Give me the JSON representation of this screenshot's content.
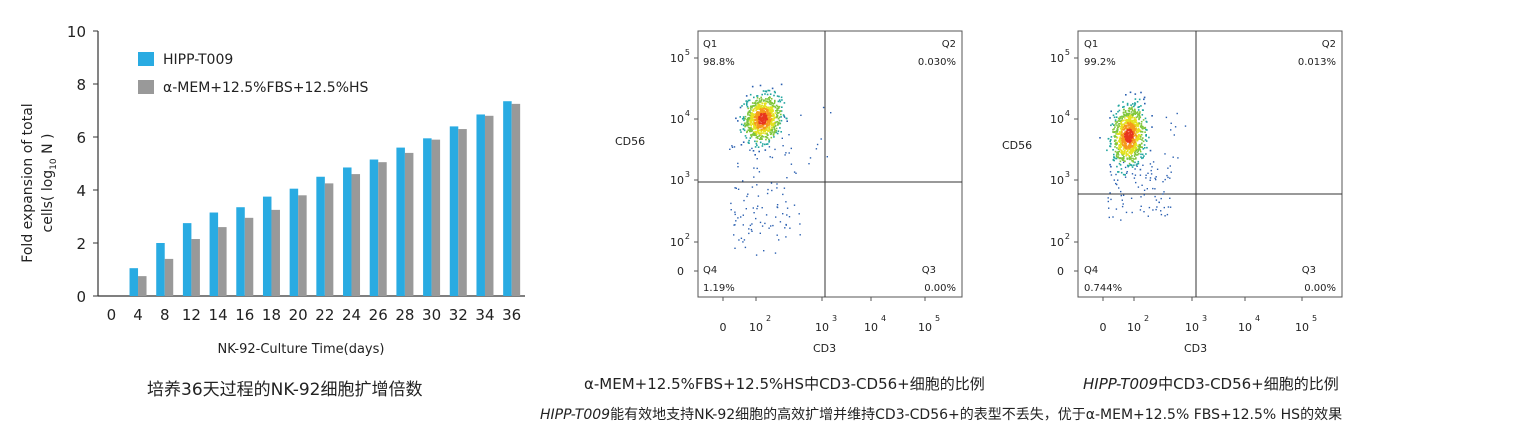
{
  "bar_chart": {
    "legend": [
      "HIPP-T009",
      "α-MEM+12.5%FBS+12.5%HS"
    ],
    "ylabel_line1": "Fold expansion of total",
    "ylabel_line2_prefix": "cells( log",
    "ylabel_sub": "10",
    "ylabel_line2_suffix": " N )",
    "xlabel": "NK-92-Culture Time(days)",
    "caption": "培养36天过程的NK-92细胞扩增倍数"
  },
  "flow_left": {
    "caption": "α-MEM+12.5%FBS+12.5%HS中CD3-CD56+细胞的比例",
    "q1_label": "Q1",
    "q1_value": "98.8%",
    "q2_label": "Q2",
    "q2_value": "0.030%",
    "q3_label": "Q3",
    "q3_value": "0.00%",
    "q4_label": "Q4",
    "q4_value": "1.19%"
  },
  "flow_right": {
    "caption_italic": "HIPP-T009",
    "caption_rest": "中CD3-CD56+细胞的比例",
    "q1_label": "Q1",
    "q1_value": "99.2%",
    "q2_label": "Q2",
    "q2_value": "0.013%",
    "q3_label": "Q3",
    "q3_value": "0.00%",
    "q4_label": "Q4",
    "q4_value": "0.744%"
  },
  "flow_axes": {
    "xlabel": "CD3",
    "ylabel": "CD56",
    "tick_base": "10",
    "ticks_y": [
      {
        "text": "0",
        "exp": ""
      },
      {
        "text": "10",
        "exp": "2"
      },
      {
        "text": "10",
        "exp": "3"
      },
      {
        "text": "10",
        "exp": "4"
      },
      {
        "text": "10",
        "exp": "5"
      }
    ],
    "ticks_x": [
      {
        "text": "0",
        "exp": ""
      },
      {
        "text": "10",
        "exp": "2"
      },
      {
        "text": "10",
        "exp": "3"
      },
      {
        "text": "10",
        "exp": "4"
      },
      {
        "text": "10",
        "exp": "5"
      }
    ]
  },
  "bottom_caption": {
    "italic": "HIPP-T009",
    "rest": "能有效地支持NK-92细胞的高效扩增并维持CD3-CD56+的表型不丢失，优于α-MEM+12.5% FBS+12.5% HS的效果"
  },
  "colors": {
    "series1": "#29abe2",
    "series2": "#999999",
    "axis": "#333333"
  },
  "chart_data": [
    {
      "type": "bar",
      "categories": [
        "0",
        "4",
        "8",
        "12",
        "14",
        "16",
        "18",
        "20",
        "22",
        "24",
        "26",
        "28",
        "30",
        "32",
        "34",
        "36"
      ],
      "series": [
        {
          "name": "HIPP-T009",
          "values": [
            0,
            1.05,
            2.0,
            2.75,
            3.15,
            3.35,
            3.75,
            4.05,
            4.5,
            4.85,
            5.15,
            5.6,
            5.95,
            6.4,
            6.85,
            7.35
          ]
        },
        {
          "name": "α-MEM+12.5%FBS+12.5%HS",
          "values": [
            0,
            0.75,
            1.4,
            2.15,
            2.6,
            2.95,
            3.25,
            3.8,
            4.25,
            4.6,
            5.05,
            5.4,
            5.9,
            6.3,
            6.8,
            7.25
          ]
        }
      ],
      "ylim": [
        0,
        10
      ],
      "yticks": [
        0,
        2,
        4,
        6,
        8,
        10
      ],
      "xlabel": "NK-92-Culture Time(days)",
      "ylabel": "Fold expansion of total cells( log10 N )",
      "legend": "top-left"
    },
    {
      "type": "scatter",
      "xlabel": "CD3",
      "ylabel": "CD56",
      "quadrants": {
        "Q1": "98.8%",
        "Q2": "0.030%",
        "Q3": "0.00%",
        "Q4": "1.19%"
      }
    },
    {
      "type": "scatter",
      "xlabel": "CD3",
      "ylabel": "CD56",
      "quadrants": {
        "Q1": "99.2%",
        "Q2": "0.013%",
        "Q3": "0.00%",
        "Q4": "0.744%"
      }
    }
  ]
}
